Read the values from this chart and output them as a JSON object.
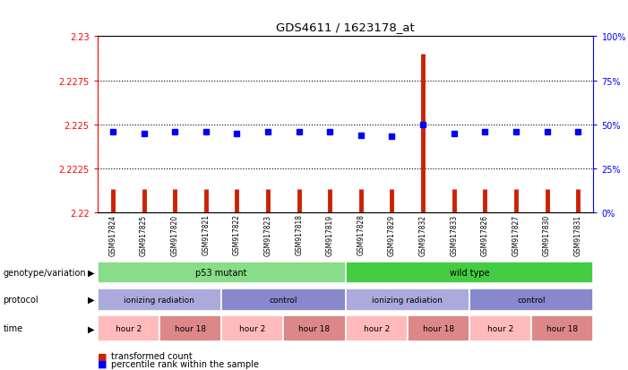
{
  "title": "GDS4611 / 1623178_at",
  "samples": [
    "GSM917824",
    "GSM917825",
    "GSM917820",
    "GSM917821",
    "GSM917822",
    "GSM917823",
    "GSM917818",
    "GSM917819",
    "GSM917828",
    "GSM917829",
    "GSM917832",
    "GSM917833",
    "GSM917826",
    "GSM917827",
    "GSM917830",
    "GSM917831"
  ],
  "red_values": [
    2.2213,
    2.2213,
    2.2213,
    2.2213,
    2.2213,
    2.2213,
    2.2213,
    2.2213,
    2.2213,
    2.2213,
    2.229,
    2.2213,
    2.2213,
    2.2213,
    2.2213,
    2.2213
  ],
  "blue_pcts": [
    46,
    45,
    46,
    46,
    45,
    46,
    46,
    46,
    44,
    43,
    50,
    45,
    46,
    46,
    46,
    46
  ],
  "ylim_left": [
    2.22,
    2.23
  ],
  "ylim_right": [
    0,
    100
  ],
  "yticks_left": [
    2.22,
    2.2225,
    2.225,
    2.2275,
    2.23
  ],
  "ytick_labels_left": [
    "2.22",
    "2.2225",
    "2.225",
    "2.2275",
    "2.23"
  ],
  "yticks_right": [
    0,
    25,
    50,
    75,
    100
  ],
  "hlines": [
    2.2275,
    2.225,
    2.2225
  ],
  "genotype_groups": [
    {
      "label": "p53 mutant",
      "start": 0,
      "end": 8,
      "color": "#88DD88"
    },
    {
      "label": "wild type",
      "start": 8,
      "end": 16,
      "color": "#44CC44"
    }
  ],
  "protocol_groups": [
    {
      "label": "ionizing radiation",
      "start": 0,
      "end": 4,
      "color": "#AAAADD"
    },
    {
      "label": "control",
      "start": 4,
      "end": 8,
      "color": "#8888CC"
    },
    {
      "label": "ionizing radiation",
      "start": 8,
      "end": 12,
      "color": "#AAAADD"
    },
    {
      "label": "control",
      "start": 12,
      "end": 16,
      "color": "#8888CC"
    }
  ],
  "time_groups": [
    {
      "label": "hour 2",
      "start": 0,
      "end": 2,
      "color": "#FFBBBB"
    },
    {
      "label": "hour 18",
      "start": 2,
      "end": 4,
      "color": "#DD8888"
    },
    {
      "label": "hour 2",
      "start": 4,
      "end": 6,
      "color": "#FFBBBB"
    },
    {
      "label": "hour 18",
      "start": 6,
      "end": 8,
      "color": "#DD8888"
    },
    {
      "label": "hour 2",
      "start": 8,
      "end": 10,
      "color": "#FFBBBB"
    },
    {
      "label": "hour 18",
      "start": 10,
      "end": 12,
      "color": "#DD8888"
    },
    {
      "label": "hour 2",
      "start": 12,
      "end": 14,
      "color": "#FFBBBB"
    },
    {
      "label": "hour 18",
      "start": 14,
      "end": 16,
      "color": "#DD8888"
    }
  ],
  "legend_red": "transformed count",
  "legend_blue": "percentile rank within the sample",
  "label_genotype": "genotype/variation",
  "label_protocol": "protocol",
  "label_time": "time",
  "bar_bottom": 2.22
}
